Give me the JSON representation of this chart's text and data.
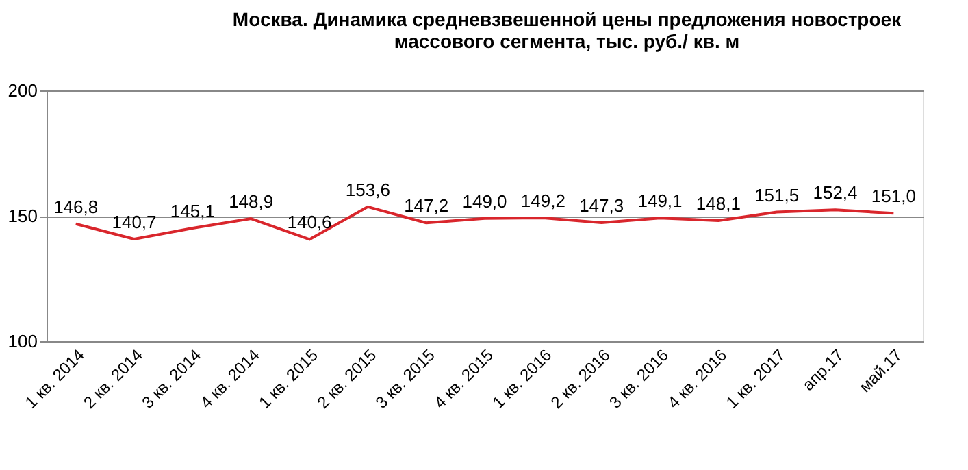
{
  "chart_data": {
    "type": "line",
    "title": "Москва. Динамика средневзвешенной цены предложения новостроек\nмассового сегмента, тыс. руб./ кв. м",
    "categories": [
      "1 кв. 2014",
      "2 кв. 2014",
      "3 кв. 2014",
      "4 кв. 2014",
      "1 кв. 2015",
      "2 кв. 2015",
      "3 кв. 2015",
      "4 кв. 2015",
      "1 кв. 2016",
      "2 кв. 2016",
      "3 кв. 2016",
      "4 кв. 2016",
      "1 кв. 2017",
      "апр.17",
      "май.17"
    ],
    "series": [
      {
        "color": "#d9262c",
        "values": [
          146.8,
          140.7,
          145.1,
          148.9,
          140.6,
          153.6,
          147.2,
          149.0,
          149.2,
          147.3,
          149.1,
          148.1,
          151.5,
          152.4,
          151.0
        ],
        "value_labels": [
          "146,8",
          "140,7",
          "145,1",
          "148,9",
          "140,6",
          "153,6",
          "147,2",
          "149,0",
          "149,2",
          "147,3",
          "149,1",
          "148,1",
          "151,5",
          "152,4",
          "151,0"
        ]
      }
    ],
    "ylim": [
      100,
      200
    ],
    "yticks": [
      100,
      150,
      200
    ],
    "grid": "y",
    "marker": "none",
    "line_style": "solid"
  }
}
